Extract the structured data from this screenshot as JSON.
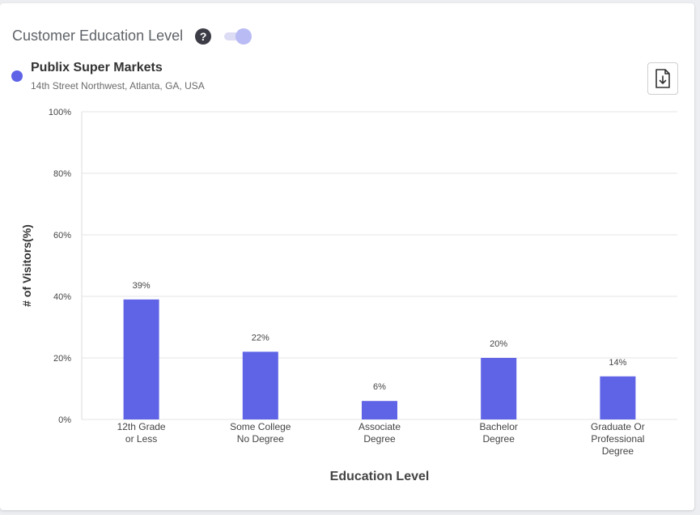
{
  "header": {
    "title": "Customer Education Level",
    "help_glyph": "?"
  },
  "store": {
    "name": "Publix Super Markets",
    "address": "14th Street Northwest, Atlanta, GA, USA",
    "dot_color": "#5f63e6"
  },
  "toolbar": {
    "download_icon": "file-download-icon"
  },
  "chart_data": {
    "type": "bar",
    "categories": [
      [
        "12th Grade",
        "or Less"
      ],
      [
        "Some College",
        "No Degree"
      ],
      [
        "Associate",
        "Degree"
      ],
      [
        "Bachelor",
        "Degree"
      ],
      [
        "Graduate Or",
        "Professional",
        "Degree"
      ]
    ],
    "values": [
      39,
      22,
      6,
      20,
      14
    ],
    "value_labels": [
      "39%",
      "22%",
      "6%",
      "20%",
      "14%"
    ],
    "xlabel": "Education Level",
    "ylabel": "# of Visitors(%)",
    "ylim": [
      0,
      100
    ],
    "yticks": [
      0,
      20,
      40,
      60,
      80,
      100
    ],
    "ytick_labels": [
      "0%",
      "20%",
      "40%",
      "60%",
      "80%",
      "100%"
    ],
    "bar_color": "#5f63e6",
    "grid": true
  }
}
